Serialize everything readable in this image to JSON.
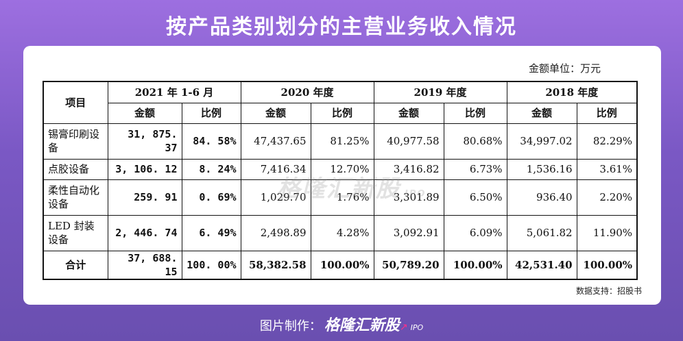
{
  "title": "按产品类别划分的主营业务收入情况",
  "unit_label": "金额单位：万元",
  "table": {
    "col_item": "项目",
    "periods": [
      "2021 年 1-6 月",
      "2020 年度",
      "2019 年度",
      "2018 年度"
    ],
    "sub_amount": "金额",
    "sub_ratio": "比例",
    "rows": [
      {
        "name": "锡膏印刷设备",
        "cells": [
          "31, 875. 37",
          "84. 58%",
          "47,437.65",
          "81.25%",
          "40,977.58",
          "80.68%",
          "34,997.02",
          "82.29%"
        ]
      },
      {
        "name": "点胶设备",
        "cells": [
          "3, 106. 12",
          "8. 24%",
          "7,416.34",
          "12.70%",
          "3,416.82",
          "6.73%",
          "1,536.16",
          "3.61%"
        ]
      },
      {
        "name": "柔性自动化设备",
        "cells": [
          "259. 91",
          "0. 69%",
          "1,029.70",
          "1.76%",
          "3,301.89",
          "6.50%",
          "936.40",
          "2.20%"
        ]
      },
      {
        "name": "LED 封装设备",
        "cells": [
          "2, 446. 74",
          "6. 49%",
          "2,498.89",
          "4.28%",
          "3,092.91",
          "6.09%",
          "5,061.82",
          "11.90%"
        ]
      }
    ],
    "total": {
      "name": "合计",
      "cells": [
        "37, 688. 15",
        "100. 00%",
        "58,382.58",
        "100.00%",
        "50,789.20",
        "100.00%",
        "42,531.40",
        "100.00%"
      ]
    }
  },
  "watermark": {
    "text": "格隆汇新股",
    "sub": "IPO"
  },
  "source": "数据支持：招股书",
  "footer": {
    "prefix": "图片制作：",
    "brand": "格隆汇新股",
    "ipo": "IPO"
  }
}
